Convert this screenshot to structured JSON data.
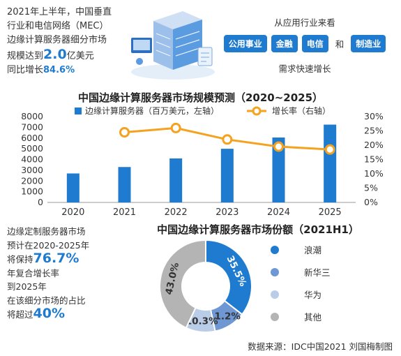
{
  "intro": {
    "line1": "2021年上半年，中国垂直",
    "line2": "行业和电信网络（MEC）",
    "line3": "边缘计算服务器细分市场",
    "line4_pre": "规模达到",
    "line4_value": "2.0",
    "line4_post": "亿美元",
    "line5_pre": "同比增长",
    "line5_value": "84.6%"
  },
  "industries": {
    "header": "从应用行业来看",
    "tags": [
      "公用事业",
      "金融",
      "电信"
    ],
    "and_text": "和",
    "last_tag": "制造业",
    "footer": "需求快速增长"
  },
  "colors": {
    "accent": "#1f7bd0",
    "bar": "#1f7bd0",
    "line": "#f5a21f",
    "pie": [
      "#1f7bd0",
      "#6f97d4",
      "#b9cde9",
      "#b4b4b4"
    ]
  },
  "chart_data": [
    {
      "type": "bar",
      "title": "中国边缘计算服务器市场规模预测（2020~2025）",
      "categories": [
        "2020",
        "2021",
        "2022",
        "2023",
        "2024",
        "2025"
      ],
      "series": [
        {
          "name": "边缘计算服务器（百万美元，左轴）",
          "type": "bar",
          "axis": "left",
          "values": [
            2700,
            3300,
            4100,
            5000,
            6050,
            7250
          ]
        },
        {
          "name": "增长率（右轴）",
          "type": "line",
          "axis": "right",
          "values": [
            null,
            24.5,
            26.0,
            22.0,
            19.5,
            18.5
          ]
        }
      ],
      "y_left": {
        "ticks": [
          "0",
          "1000",
          "2000",
          "3000",
          "4000",
          "5000",
          "6000",
          "7000",
          "8000"
        ],
        "ylim": [
          0,
          8000
        ]
      },
      "y_right": {
        "ticks": [
          "0%",
          "5%",
          "10%",
          "15%",
          "20%",
          "25%",
          "30%"
        ],
        "ylim": [
          0,
          30
        ]
      },
      "legend_placement": "top-center"
    },
    {
      "type": "pie",
      "title": "中国边缘计算服务器市场份额（2021H1）",
      "labels": [
        "浪潮",
        "新华三",
        "华为",
        "其他"
      ],
      "values": [
        35.5,
        11.2,
        10.3,
        43.0
      ],
      "value_labels": [
        "35.5%",
        "11.2%",
        "10.3%",
        "43.0%"
      ],
      "legend_placement": "right"
    }
  ],
  "note": {
    "line1": "边缘定制服务器市场",
    "line2": "预计在2020-2025年",
    "line3_pre": "将保持",
    "line3_value": "76.7%",
    "line4": "年复合增长率",
    "line5": "到2025年",
    "line6": "在该细分市场的占比",
    "line7_pre": "将超过",
    "line7_value": "40%"
  },
  "source": "数据来源：IDC中国2021  刘国梅制图"
}
